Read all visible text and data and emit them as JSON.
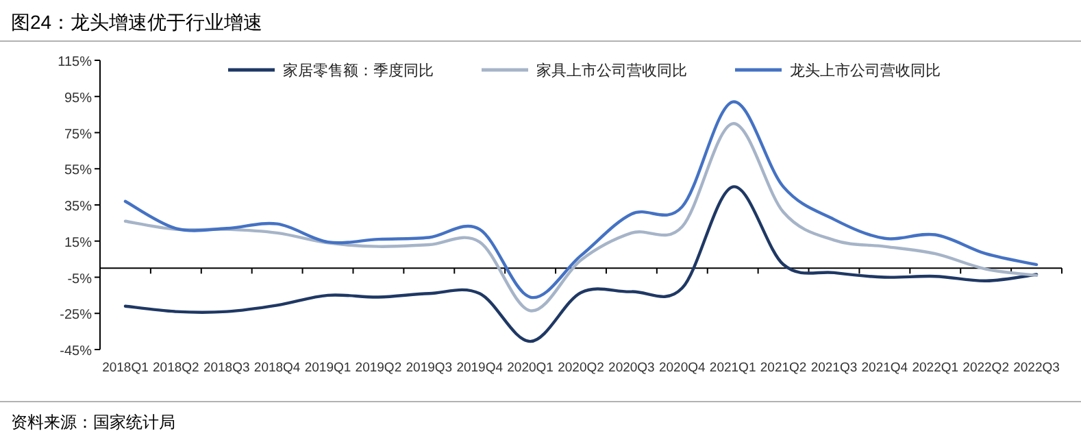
{
  "chart_data": {
    "type": "line",
    "title": "图24：龙头增速优于行业增速",
    "categories": [
      "2018Q1",
      "2018Q2",
      "2018Q3",
      "2018Q4",
      "2019Q1",
      "2019Q2",
      "2019Q3",
      "2019Q4",
      "2020Q1",
      "2020Q2",
      "2020Q3",
      "2020Q4",
      "2021Q1",
      "2021Q2",
      "2021Q3",
      "2021Q4",
      "2022Q1",
      "2022Q2",
      "2022Q3"
    ],
    "series": [
      {
        "name": "家居零售额：季度同比",
        "color": "#1f3864",
        "values": [
          -21,
          -24,
          -24,
          -20.5,
          -15,
          -16,
          -14,
          -14,
          -40.5,
          -13.5,
          -13,
          -11,
          45,
          2,
          -2.5,
          -5,
          -4.5,
          -7,
          -3.5
        ]
      },
      {
        "name": "家具上市公司营收同比",
        "color": "#a6b4c8",
        "values": [
          26,
          21.5,
          21.5,
          19.5,
          14,
          12,
          13,
          14.5,
          -23.5,
          4.5,
          19.5,
          23,
          80,
          31,
          15.5,
          12,
          8,
          -0.5,
          -4
        ]
      },
      {
        "name": "龙头上市公司营收同比",
        "color": "#4472c4",
        "values": [
          37,
          22,
          22,
          24.5,
          14.5,
          16,
          17,
          21.5,
          -16,
          7,
          30,
          34,
          92,
          45,
          27,
          16.5,
          18.5,
          8,
          2
        ]
      }
    ],
    "ylim": [
      -45,
      115
    ],
    "yticks": [
      {
        "value": 115,
        "label": "115%"
      },
      {
        "value": 95,
        "label": "95%"
      },
      {
        "value": 75,
        "label": "75%"
      },
      {
        "value": 55,
        "label": "55%"
      },
      {
        "value": 35,
        "label": "35%"
      },
      {
        "value": 15,
        "label": "15%"
      },
      {
        "value": -5,
        "label": "-5%"
      },
      {
        "value": -25,
        "label": "-25%"
      },
      {
        "value": -45,
        "label": "-45%"
      }
    ],
    "grid": false,
    "legend": "top",
    "marker": "none",
    "line_style": "solid",
    "annotations": [
      "资料来源：国家统计局"
    ]
  }
}
